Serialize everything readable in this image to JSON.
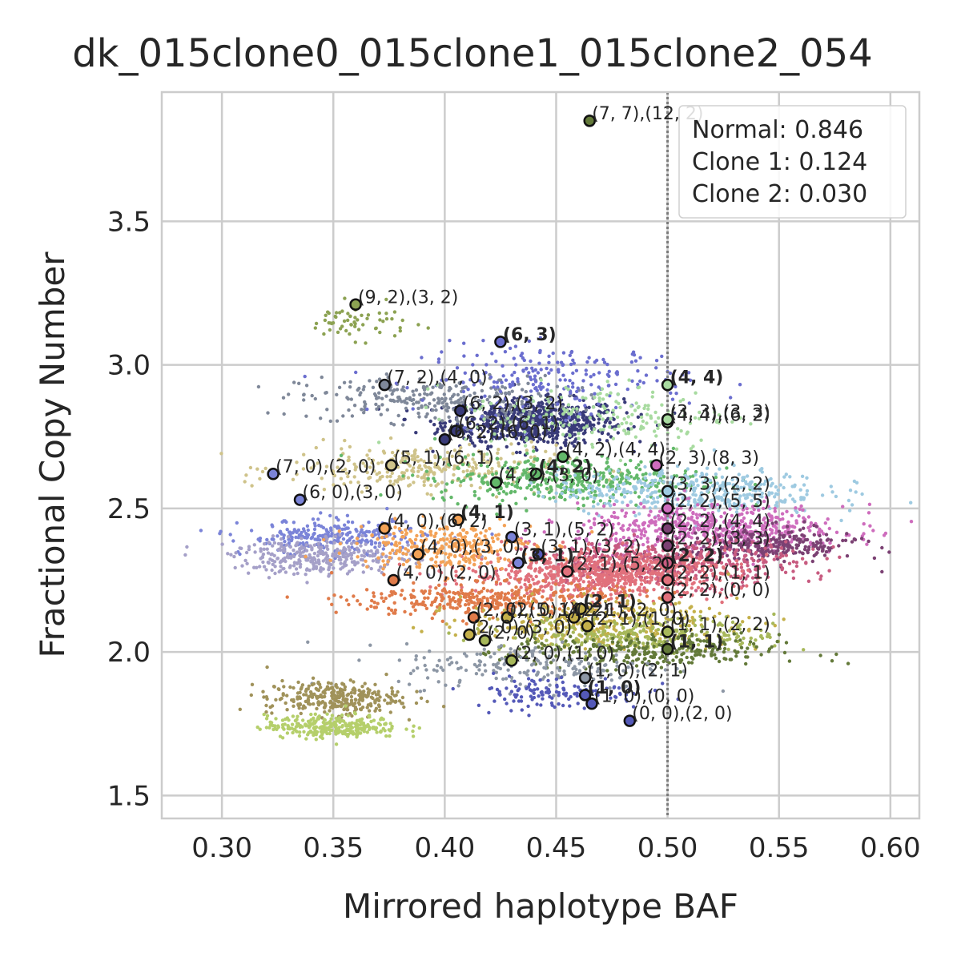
{
  "chart_data": {
    "type": "scatter",
    "title": "dk_015clone0_015clone1_015clone2_054",
    "xlabel": "Mirrored haplotype BAF",
    "ylabel": "Fractional Copy Number",
    "xlim": [
      0.273,
      0.613
    ],
    "ylim": [
      1.42,
      3.95
    ],
    "xticks": [
      0.3,
      0.35,
      0.4,
      0.45,
      0.5,
      0.55,
      0.6
    ],
    "xtick_labels": [
      "0.30",
      "0.35",
      "0.40",
      "0.45",
      "0.50",
      "0.55",
      "0.60"
    ],
    "yticks": [
      1.5,
      2.0,
      2.5,
      3.0,
      3.5
    ],
    "ytick_labels": [
      "1.5",
      "2.0",
      "2.5",
      "3.0",
      "3.5"
    ],
    "grid": true,
    "reference_line_x": 0.5,
    "legend_placement": "top-right",
    "legend": [
      "Normal: 0.846",
      "Clone 1: 0.124",
      "Clone 2: 0.030"
    ],
    "clusters": [
      {
        "x": 0.44,
        "y": 2.8,
        "sx": 0.02,
        "sy": 0.04,
        "color": "#393b79",
        "n": 700
      },
      {
        "x": 0.395,
        "y": 2.88,
        "sx": 0.03,
        "sy": 0.04,
        "color": "#7f8899",
        "n": 280
      },
      {
        "x": 0.45,
        "y": 2.95,
        "sx": 0.03,
        "sy": 0.06,
        "color": "#6b6ecf",
        "n": 220
      },
      {
        "x": 0.36,
        "y": 3.15,
        "sx": 0.012,
        "sy": 0.03,
        "color": "#8ca252",
        "n": 60
      },
      {
        "x": 0.39,
        "y": 2.64,
        "sx": 0.03,
        "sy": 0.04,
        "color": "#cfc38a",
        "n": 300
      },
      {
        "x": 0.47,
        "y": 2.82,
        "sx": 0.03,
        "sy": 0.06,
        "color": "#a8dba0",
        "n": 200
      },
      {
        "x": 0.455,
        "y": 2.6,
        "sx": 0.03,
        "sy": 0.04,
        "color": "#63b86a",
        "n": 420
      },
      {
        "x": 0.51,
        "y": 2.56,
        "sx": 0.03,
        "sy": 0.04,
        "color": "#9ecae1",
        "n": 420
      },
      {
        "x": 0.52,
        "y": 2.43,
        "sx": 0.03,
        "sy": 0.04,
        "color": "#ce6dbd",
        "n": 550
      },
      {
        "x": 0.545,
        "y": 2.37,
        "sx": 0.02,
        "sy": 0.03,
        "color": "#7b4173",
        "n": 280
      },
      {
        "x": 0.5,
        "y": 2.31,
        "sx": 0.03,
        "sy": 0.04,
        "color": "#c75b80",
        "n": 500
      },
      {
        "x": 0.47,
        "y": 2.27,
        "sx": 0.03,
        "sy": 0.04,
        "color": "#e1717c",
        "n": 700
      },
      {
        "x": 0.35,
        "y": 2.4,
        "sx": 0.02,
        "sy": 0.03,
        "color": "#7b84d8",
        "n": 260
      },
      {
        "x": 0.345,
        "y": 2.33,
        "sx": 0.02,
        "sy": 0.03,
        "color": "#a5a0c8",
        "n": 320
      },
      {
        "x": 0.4,
        "y": 2.37,
        "sx": 0.02,
        "sy": 0.04,
        "color": "#f3a257",
        "n": 300
      },
      {
        "x": 0.42,
        "y": 2.18,
        "sx": 0.03,
        "sy": 0.03,
        "color": "#e07b4a",
        "n": 380
      },
      {
        "x": 0.47,
        "y": 2.1,
        "sx": 0.03,
        "sy": 0.04,
        "color": "#c4b04a",
        "n": 380
      },
      {
        "x": 0.49,
        "y": 2.06,
        "sx": 0.03,
        "sy": 0.03,
        "color": "#a7b85a",
        "n": 280
      },
      {
        "x": 0.49,
        "y": 2.0,
        "sx": 0.03,
        "sy": 0.03,
        "color": "#637939",
        "n": 300
      },
      {
        "x": 0.44,
        "y": 1.95,
        "sx": 0.03,
        "sy": 0.04,
        "color": "#8d97a5",
        "n": 200
      },
      {
        "x": 0.45,
        "y": 1.86,
        "sx": 0.02,
        "sy": 0.03,
        "color": "#5459b8",
        "n": 130
      },
      {
        "x": 0.35,
        "y": 1.84,
        "sx": 0.015,
        "sy": 0.03,
        "color": "#a0925a",
        "n": 300
      },
      {
        "x": 0.35,
        "y": 1.74,
        "sx": 0.015,
        "sy": 0.02,
        "color": "#b5cf6b",
        "n": 280
      }
    ],
    "centers": [
      {
        "x": 0.465,
        "y": 3.85,
        "color": "#637939",
        "label": "(7, 7),(12, 2)",
        "bold": false
      },
      {
        "x": 0.36,
        "y": 3.21,
        "color": "#8ca252",
        "label": "(9, 2),(3, 2)",
        "bold": false
      },
      {
        "x": 0.425,
        "y": 3.08,
        "color": "#6b6ecf",
        "label": "(6, 3)",
        "bold": true
      },
      {
        "x": 0.5,
        "y": 2.93,
        "color": "#a8dba0",
        "label": "(4, 4)",
        "bold": true
      },
      {
        "x": 0.373,
        "y": 2.93,
        "color": "#7f8899",
        "label": "(7, 2),(4, 0)",
        "bold": false
      },
      {
        "x": 0.407,
        "y": 2.84,
        "color": "#393b79",
        "label": "(6, 2),(3, 2)",
        "bold": false
      },
      {
        "x": 0.5,
        "y": 2.8,
        "color": "#a8dba0",
        "label": "(4, 4),(6, 2)",
        "bold": false
      },
      {
        "x": 0.5,
        "y": 2.81,
        "color": "#a8dba0",
        "label": "(3, 3),(3, 3)",
        "bold": false
      },
      {
        "x": 0.405,
        "y": 2.77,
        "color": "#393b79",
        "label": "(6, 2),(6, 1)",
        "bold": false
      },
      {
        "x": 0.4,
        "y": 2.74,
        "color": "#393b79",
        "label": "(6, 2),(6, 0)",
        "bold": false
      },
      {
        "x": 0.453,
        "y": 2.68,
        "color": "#63b86a",
        "label": "(4, 2),(4, 4)",
        "bold": false
      },
      {
        "x": 0.495,
        "y": 2.65,
        "color": "#ce6dbd",
        "label": "(2, 3),(8, 3)",
        "bold": false
      },
      {
        "x": 0.376,
        "y": 2.65,
        "color": "#cfc38a",
        "label": "(5, 1),(6, 1)",
        "bold": false
      },
      {
        "x": 0.323,
        "y": 2.62,
        "color": "#7b84d8",
        "label": "(7, 0),(2, 0)",
        "bold": false
      },
      {
        "x": 0.441,
        "y": 2.62,
        "color": "#63b86a",
        "label": "(4, 2)",
        "bold": true
      },
      {
        "x": 0.423,
        "y": 2.59,
        "color": "#63b86a",
        "label": "(4, 2),(3, 0)",
        "bold": false
      },
      {
        "x": 0.5,
        "y": 2.56,
        "color": "#9ecae1",
        "label": "(3, 3),(2, 2)",
        "bold": false
      },
      {
        "x": 0.335,
        "y": 2.53,
        "color": "#7b84d8",
        "label": "(6, 0),(3, 0)",
        "bold": false
      },
      {
        "x": 0.5,
        "y": 2.5,
        "color": "#ce6dbd",
        "label": "(2, 2),(5, 5)",
        "bold": false
      },
      {
        "x": 0.406,
        "y": 2.46,
        "color": "#f3a257",
        "label": "(4, 1)",
        "bold": true
      },
      {
        "x": 0.5,
        "y": 2.43,
        "color": "#7b4173",
        "label": "(2, 2),(4, 4)",
        "bold": false
      },
      {
        "x": 0.373,
        "y": 2.43,
        "color": "#f3a257",
        "label": "(4, 0),(6, 2)",
        "bold": false
      },
      {
        "x": 0.43,
        "y": 2.4,
        "color": "#7b84d8",
        "label": "(3, 1),(5, 2)",
        "bold": false
      },
      {
        "x": 0.5,
        "y": 2.37,
        "color": "#7b4173",
        "label": "(2, 2),(3, 3)",
        "bold": false
      },
      {
        "x": 0.388,
        "y": 2.34,
        "color": "#f3a257",
        "label": "(4, 0),(3, 0)",
        "bold": false
      },
      {
        "x": 0.442,
        "y": 2.34,
        "color": "#5459b8",
        "label": "(3, 1),(3, 2)",
        "bold": false
      },
      {
        "x": 0.433,
        "y": 2.31,
        "color": "#7b84d8",
        "label": "(3, 1)",
        "bold": true
      },
      {
        "x": 0.5,
        "y": 2.31,
        "color": "#c75b80",
        "label": "(2, 2)",
        "bold": true
      },
      {
        "x": 0.455,
        "y": 2.28,
        "color": "#e1717c",
        "label": "(2, 1),(5, 2)",
        "bold": false
      },
      {
        "x": 0.5,
        "y": 2.25,
        "color": "#e1717c",
        "label": "(2, 2),(1, 1)",
        "bold": false
      },
      {
        "x": 0.377,
        "y": 2.25,
        "color": "#e07b4a",
        "label": "(4, 0),(2, 0)",
        "bold": false
      },
      {
        "x": 0.5,
        "y": 2.19,
        "color": "#e1717c",
        "label": "(2, 2),(0, 0)",
        "bold": false
      },
      {
        "x": 0.461,
        "y": 2.15,
        "color": "#c4b04a",
        "label": "(2, 1)",
        "bold": true
      },
      {
        "x": 0.413,
        "y": 2.12,
        "color": "#e07b4a",
        "label": "(2, 0),(5, 1)",
        "bold": false
      },
      {
        "x": 0.428,
        "y": 2.12,
        "color": "#c4b04a",
        "label": "(2, 0),(4, 2)",
        "bold": false
      },
      {
        "x": 0.458,
        "y": 2.12,
        "color": "#c4b04a",
        "label": "(2, 1),(2, 0)",
        "bold": false
      },
      {
        "x": 0.464,
        "y": 2.09,
        "color": "#c4b04a",
        "label": "(2, 1),(1, 0)",
        "bold": false
      },
      {
        "x": 0.5,
        "y": 2.07,
        "color": "#a7b85a",
        "label": "(1, 1),(2, 2)",
        "bold": false
      },
      {
        "x": 0.411,
        "y": 2.06,
        "color": "#c4b04a",
        "label": "(2, 0),(3, 0)",
        "bold": false
      },
      {
        "x": 0.418,
        "y": 2.04,
        "color": "#a7b85a",
        "label": "(2, 0)",
        "bold": false
      },
      {
        "x": 0.5,
        "y": 2.01,
        "color": "#637939",
        "label": "(1, 1)",
        "bold": true
      },
      {
        "x": 0.43,
        "y": 1.97,
        "color": "#a7b85a",
        "label": "(2, 0),(1, 0)",
        "bold": false
      },
      {
        "x": 0.463,
        "y": 1.91,
        "color": "#8d97a5",
        "label": "(1, 0),(2, 1)",
        "bold": false
      },
      {
        "x": 0.463,
        "y": 1.85,
        "color": "#5459b8",
        "label": "(1, 0)",
        "bold": true
      },
      {
        "x": 0.466,
        "y": 1.82,
        "color": "#5459b8",
        "label": "(1, 0),(0, 0)",
        "bold": false
      },
      {
        "x": 0.483,
        "y": 1.76,
        "color": "#5459b8",
        "label": "(0, 0),(2, 0)",
        "bold": false
      }
    ]
  }
}
